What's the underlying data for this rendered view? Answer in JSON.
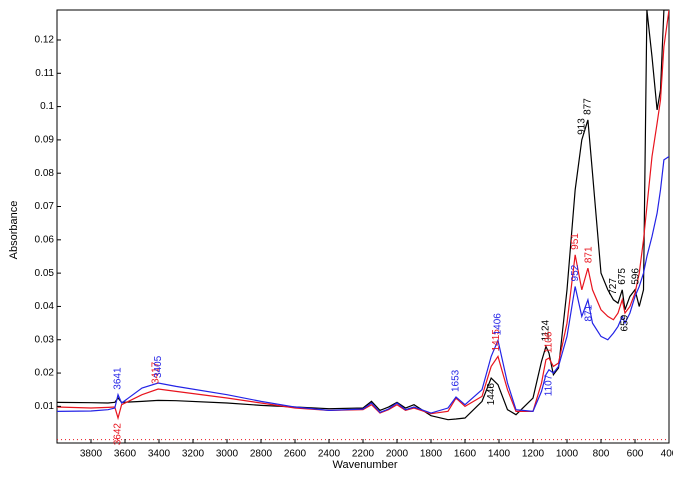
{
  "chart_data": {
    "type": "line",
    "xlabel": "Wavenumber",
    "ylabel": "Absorbance",
    "x": [
      4000,
      3800,
      3700,
      3660,
      3641,
      3620,
      3500,
      3405,
      3300,
      3000,
      2800,
      2600,
      2400,
      2200,
      2150,
      2100,
      2050,
      2000,
      1950,
      1900,
      1800,
      1700,
      1653,
      1600,
      1500,
      1446,
      1406,
      1350,
      1300,
      1200,
      1150,
      1124,
      1106,
      1080,
      1050,
      1000,
      952,
      913,
      877,
      850,
      800,
      760,
      727,
      700,
      675,
      659,
      630,
      600,
      575,
      550,
      530,
      500,
      470,
      450,
      430,
      400
    ],
    "series": [
      {
        "color": "#000000",
        "values": [
          0.0112,
          0.0111,
          0.011,
          0.0112,
          0.0125,
          0.0112,
          0.0115,
          0.0118,
          0.0117,
          0.011,
          0.0103,
          0.0098,
          0.0093,
          0.0095,
          0.0115,
          0.0088,
          0.0098,
          0.0112,
          0.0095,
          0.0105,
          0.0072,
          0.006,
          0.0062,
          0.0065,
          0.0115,
          0.0185,
          0.0165,
          0.009,
          0.0075,
          0.0125,
          0.0235,
          0.028,
          0.026,
          0.0195,
          0.0215,
          0.045,
          0.075,
          0.09,
          0.096,
          0.08,
          0.05,
          0.045,
          0.042,
          0.041,
          0.045,
          0.039,
          0.043,
          0.045,
          0.04,
          0.045,
          0.129,
          0.115,
          0.099,
          0.105,
          0.129,
          0.129
        ]
      },
      {
        "color": "#e8141e",
        "values": [
          0.0098,
          0.0095,
          0.0097,
          0.0098,
          0.0065,
          0.0105,
          0.0135,
          0.0152,
          0.0145,
          0.0125,
          0.011,
          0.0095,
          0.0088,
          0.009,
          0.0105,
          0.008,
          0.009,
          0.0105,
          0.0088,
          0.0095,
          0.0078,
          0.0085,
          0.0125,
          0.01,
          0.013,
          0.022,
          0.025,
          0.015,
          0.0085,
          0.0085,
          0.017,
          0.024,
          0.0245,
          0.022,
          0.023,
          0.035,
          0.0555,
          0.045,
          0.0515,
          0.045,
          0.039,
          0.037,
          0.036,
          0.038,
          0.042,
          0.038,
          0.04,
          0.044,
          0.05,
          0.06,
          0.07,
          0.085,
          0.095,
          0.102,
          0.118,
          0.129
        ]
      },
      {
        "color": "#2323e6",
        "values": [
          0.0085,
          0.0086,
          0.009,
          0.0095,
          0.0135,
          0.011,
          0.0155,
          0.017,
          0.016,
          0.0135,
          0.0115,
          0.0098,
          0.0088,
          0.0092,
          0.011,
          0.0082,
          0.0092,
          0.011,
          0.009,
          0.0098,
          0.008,
          0.0095,
          0.0128,
          0.0105,
          0.015,
          0.025,
          0.0298,
          0.017,
          0.009,
          0.0085,
          0.0145,
          0.0195,
          0.021,
          0.02,
          0.022,
          0.031,
          0.046,
          0.037,
          0.042,
          0.035,
          0.031,
          0.03,
          0.032,
          0.034,
          0.037,
          0.035,
          0.038,
          0.043,
          0.046,
          0.05,
          0.055,
          0.061,
          0.068,
          0.075,
          0.084,
          0.085
        ]
      }
    ],
    "annotations": [
      {
        "x": 3641,
        "y": 0.0135,
        "color": "#2323e6",
        "side": "above"
      },
      {
        "x": 3642,
        "y": 0.0065,
        "color": "#e8141e",
        "side": "below"
      },
      {
        "x": 3417,
        "y": 0.0152,
        "color": "#e8141e",
        "side": "above"
      },
      {
        "x": 3405,
        "y": 0.017,
        "color": "#2323e6",
        "side": "above"
      },
      {
        "x": 1653,
        "y": 0.0128,
        "color": "#2323e6",
        "side": "above"
      },
      {
        "x": 1415,
        "y": 0.025,
        "color": "#e8141e",
        "side": "above"
      },
      {
        "x": 1406,
        "y": 0.0298,
        "color": "#2323e6",
        "side": "above"
      },
      {
        "x": 1446,
        "y": 0.0185,
        "color": "#000000",
        "side": "below"
      },
      {
        "x": 1124,
        "y": 0.028,
        "color": "#000000",
        "side": "above"
      },
      {
        "x": 1106,
        "y": 0.0245,
        "color": "#e8141e",
        "side": "above"
      },
      {
        "x": 1107,
        "y": 0.021,
        "color": "#2323e6",
        "side": "below"
      },
      {
        "x": 952,
        "y": 0.046,
        "color": "#2323e6",
        "side": "above"
      },
      {
        "x": 951,
        "y": 0.0555,
        "color": "#e8141e",
        "side": "above"
      },
      {
        "x": 913,
        "y": 0.09,
        "color": "#000000",
        "side": "above"
      },
      {
        "x": 877,
        "y": 0.096,
        "color": "#000000",
        "side": "above"
      },
      {
        "x": 871,
        "y": 0.0515,
        "color": "#e8141e",
        "side": "above"
      },
      {
        "x": 871,
        "y": 0.042,
        "color": "#2323e6",
        "side": "below"
      },
      {
        "x": 727,
        "y": 0.042,
        "color": "#000000",
        "side": "above"
      },
      {
        "x": 675,
        "y": 0.045,
        "color": "#000000",
        "side": "above"
      },
      {
        "x": 596,
        "y": 0.045,
        "color": "#000000",
        "side": "above"
      },
      {
        "x": 659,
        "y": 0.039,
        "color": "#000000",
        "side": "below"
      }
    ],
    "xlim": [
      4000,
      400
    ],
    "ylim": [
      -0.001,
      0.129
    ],
    "xticks": [
      3800,
      3600,
      3400,
      3200,
      3000,
      2800,
      2600,
      2400,
      2200,
      2000,
      1800,
      1600,
      1400,
      1200,
      1000,
      800,
      600,
      400
    ],
    "yticks": [
      0.01,
      0.02,
      0.03,
      0.04,
      0.05,
      0.06,
      0.07,
      0.08,
      0.09,
      0.1,
      0.11,
      0.12
    ]
  }
}
